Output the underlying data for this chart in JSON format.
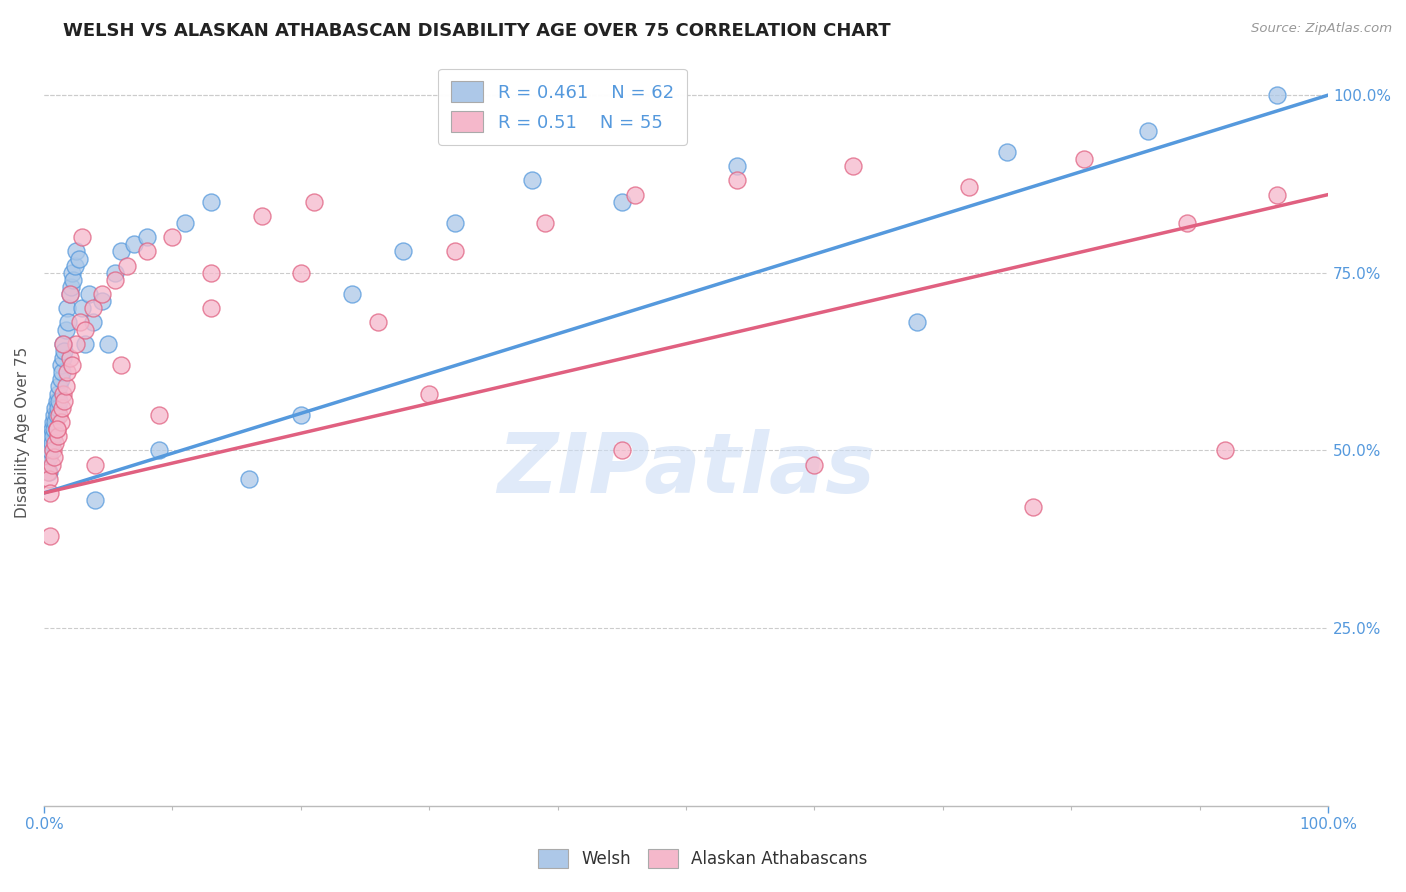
{
  "title": "WELSH VS ALASKAN ATHABASCAN DISABILITY AGE OVER 75 CORRELATION CHART",
  "ylabel": "Disability Age Over 75",
  "source": "Source: ZipAtlas.com",
  "welsh_R": 0.461,
  "welsh_N": 62,
  "alaskan_R": 0.51,
  "alaskan_N": 55,
  "welsh_color": "#adc8e8",
  "alaskan_color": "#f5b8cb",
  "welsh_line_color": "#5599dd",
  "alaskan_line_color": "#e06080",
  "welsh_x": [
    0.002,
    0.003,
    0.004,
    0.004,
    0.005,
    0.005,
    0.006,
    0.006,
    0.007,
    0.007,
    0.008,
    0.008,
    0.009,
    0.009,
    0.01,
    0.01,
    0.011,
    0.011,
    0.012,
    0.012,
    0.013,
    0.013,
    0.014,
    0.015,
    0.015,
    0.016,
    0.017,
    0.018,
    0.019,
    0.02,
    0.021,
    0.022,
    0.023,
    0.024,
    0.025,
    0.027,
    0.03,
    0.032,
    0.035,
    0.038,
    0.04,
    0.045,
    0.05,
    0.055,
    0.06,
    0.07,
    0.08,
    0.09,
    0.11,
    0.13,
    0.16,
    0.2,
    0.24,
    0.28,
    0.32,
    0.38,
    0.45,
    0.54,
    0.68,
    0.75,
    0.86,
    0.96
  ],
  "welsh_y": [
    0.48,
    0.5,
    0.47,
    0.49,
    0.52,
    0.5,
    0.53,
    0.51,
    0.54,
    0.52,
    0.55,
    0.53,
    0.56,
    0.54,
    0.57,
    0.55,
    0.58,
    0.56,
    0.59,
    0.57,
    0.6,
    0.62,
    0.61,
    0.63,
    0.65,
    0.64,
    0.67,
    0.7,
    0.68,
    0.72,
    0.73,
    0.75,
    0.74,
    0.76,
    0.78,
    0.77,
    0.7,
    0.65,
    0.72,
    0.68,
    0.43,
    0.71,
    0.65,
    0.75,
    0.78,
    0.79,
    0.8,
    0.5,
    0.82,
    0.85,
    0.46,
    0.55,
    0.72,
    0.78,
    0.82,
    0.88,
    0.85,
    0.9,
    0.68,
    0.92,
    0.95,
    1.0
  ],
  "alaskan_x": [
    0.003,
    0.004,
    0.005,
    0.006,
    0.007,
    0.008,
    0.009,
    0.01,
    0.011,
    0.012,
    0.013,
    0.014,
    0.015,
    0.016,
    0.017,
    0.018,
    0.02,
    0.022,
    0.025,
    0.028,
    0.032,
    0.038,
    0.045,
    0.055,
    0.065,
    0.08,
    0.1,
    0.13,
    0.17,
    0.21,
    0.26,
    0.32,
    0.39,
    0.46,
    0.54,
    0.63,
    0.72,
    0.81,
    0.89,
    0.96,
    0.005,
    0.01,
    0.015,
    0.02,
    0.03,
    0.04,
    0.06,
    0.09,
    0.13,
    0.2,
    0.3,
    0.45,
    0.6,
    0.77,
    0.92
  ],
  "alaskan_y": [
    0.47,
    0.46,
    0.44,
    0.48,
    0.5,
    0.49,
    0.51,
    0.53,
    0.52,
    0.55,
    0.54,
    0.56,
    0.58,
    0.57,
    0.59,
    0.61,
    0.63,
    0.62,
    0.65,
    0.68,
    0.67,
    0.7,
    0.72,
    0.74,
    0.76,
    0.78,
    0.8,
    0.75,
    0.83,
    0.85,
    0.68,
    0.78,
    0.82,
    0.86,
    0.88,
    0.9,
    0.87,
    0.91,
    0.82,
    0.86,
    0.38,
    0.53,
    0.65,
    0.72,
    0.8,
    0.48,
    0.62,
    0.55,
    0.7,
    0.75,
    0.58,
    0.5,
    0.48,
    0.42,
    0.5
  ],
  "line_welsh_x0": 0.0,
  "line_welsh_y0": 0.44,
  "line_welsh_x1": 1.0,
  "line_welsh_y1": 1.0,
  "line_alaskan_x0": 0.0,
  "line_alaskan_y0": 0.44,
  "line_alaskan_x1": 1.0,
  "line_alaskan_y1": 0.86,
  "xlim": [
    0.0,
    1.0
  ],
  "ylim": [
    0.0,
    1.05
  ],
  "yticks_right": [
    0.25,
    0.5,
    0.75,
    1.0
  ],
  "ytick_labels_right": [
    "25.0%",
    "50.0%",
    "75.0%",
    "100.0%"
  ],
  "watermark_text": "ZIPatlas",
  "watermark_color": "#ccddf5",
  "background_color": "#ffffff",
  "grid_color": "#cccccc"
}
